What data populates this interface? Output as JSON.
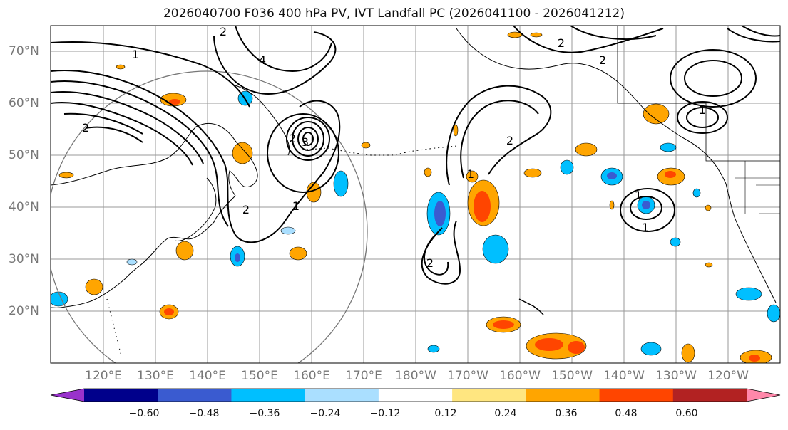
{
  "title": "2026040700 F036 400 hPa PV, IVT Landfall PC (2026041100 - 2026041212)",
  "lat_labels": [
    "70°N",
    "60°N",
    "50°N",
    "40°N",
    "30°N",
    "20°N"
  ],
  "lon_labels": [
    "120°E",
    "130°E",
    "140°E",
    "150°E",
    "160°E",
    "170°E",
    "180°W",
    "170°W",
    "160°W",
    "150°W",
    "140°W",
    "130°W",
    "120°W"
  ],
  "colorbar": {
    "ticks": [
      "−0.60",
      "−0.48",
      "−0.36",
      "−0.24",
      "−0.12",
      "0.12",
      "0.24",
      "0.36",
      "0.48",
      "0.60"
    ],
    "colors": [
      "#9932cc",
      "#00008b",
      "#3a5bd0",
      "#00bfff",
      "#aadfff",
      "#ffffff",
      "#ffe680",
      "#ffa500",
      "#ff4500",
      "#b22222",
      "#ff88aa"
    ]
  },
  "contour_labels": [
    "1",
    "1",
    "2",
    "2",
    "3",
    "2",
    "1",
    "2",
    "1",
    "2",
    "2",
    "4",
    "1",
    "1",
    "2",
    "2"
  ]
}
